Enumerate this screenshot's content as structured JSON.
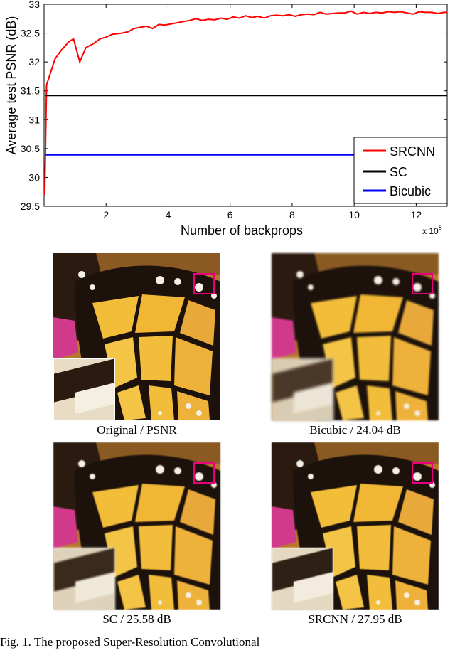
{
  "chart_data": {
    "type": "line",
    "title": "",
    "xlabel": "Number of backprops",
    "ylabel": "Average test PSNR (dB)",
    "x_multiplier": "x 10",
    "x_multiplier_exp": "8",
    "xlim": [
      0,
      13
    ],
    "ylim": [
      29.5,
      33
    ],
    "xticks": [
      "2",
      "4",
      "6",
      "8",
      "10",
      "12"
    ],
    "yticks": [
      "29.5",
      "30",
      "30.5",
      "31",
      "31.5",
      "32",
      "32.5",
      "33"
    ],
    "grid": false,
    "legend_position": "bottom-right",
    "series": [
      {
        "name": "SRCNN",
        "color": "#ff0000",
        "x": [
          0.02,
          0.08,
          0.2,
          0.35,
          0.55,
          0.8,
          0.95,
          1.15,
          1.35,
          1.6,
          1.8,
          2.0,
          2.2,
          2.5,
          2.7,
          2.9,
          3.1,
          3.3,
          3.5,
          3.7,
          3.9,
          4.1,
          4.3,
          4.5,
          4.7,
          4.9,
          5.1,
          5.3,
          5.5,
          5.7,
          5.9,
          6.1,
          6.3,
          6.5,
          6.7,
          6.9,
          7.1,
          7.3,
          7.5,
          7.7,
          7.9,
          8.1,
          8.3,
          8.5,
          8.7,
          8.9,
          9.1,
          9.3,
          9.5,
          9.7,
          9.9,
          10.1,
          10.3,
          10.5,
          10.7,
          10.9,
          11.1,
          11.3,
          11.5,
          11.7,
          11.9,
          12.1,
          12.3,
          12.5,
          12.7,
          12.9,
          13.0
        ],
        "values": [
          29.7,
          31.6,
          31.8,
          32.05,
          32.2,
          32.35,
          32.4,
          32.0,
          32.25,
          32.32,
          32.4,
          32.43,
          32.48,
          32.5,
          32.52,
          32.58,
          32.6,
          32.62,
          32.58,
          32.65,
          32.64,
          32.66,
          32.68,
          32.7,
          32.72,
          32.75,
          32.72,
          32.74,
          32.73,
          32.76,
          32.74,
          32.78,
          32.76,
          32.8,
          32.77,
          32.79,
          32.76,
          32.8,
          32.81,
          32.8,
          32.82,
          32.79,
          32.82,
          32.83,
          32.82,
          32.86,
          32.83,
          32.84,
          32.85,
          32.85,
          32.88,
          32.83,
          32.86,
          32.84,
          32.86,
          32.85,
          32.87,
          32.86,
          32.87,
          32.85,
          32.83,
          32.87,
          32.86,
          32.86,
          32.84,
          32.86,
          32.86
        ]
      },
      {
        "name": "SC",
        "color": "#000000",
        "x": [
          0.05,
          13.0
        ],
        "values": [
          31.42,
          31.42
        ]
      },
      {
        "name": "Bicubic",
        "color": "#0000ff",
        "x": [
          0.05,
          13.0
        ],
        "values": [
          30.39,
          30.39
        ]
      }
    ]
  },
  "figure": {
    "panels": [
      {
        "id": "original",
        "caption": "Original / PSNR"
      },
      {
        "id": "bicubic",
        "caption": "Bicubic / 24.04 dB"
      },
      {
        "id": "sc",
        "caption": "SC / 25.58 dB"
      },
      {
        "id": "srcnn",
        "caption": "SRCNN / 27.95 dB"
      }
    ],
    "highlight_color": "#e6007e",
    "caption_partial": "Fig. 1.   The proposed Super-Resolution Convolutional"
  }
}
